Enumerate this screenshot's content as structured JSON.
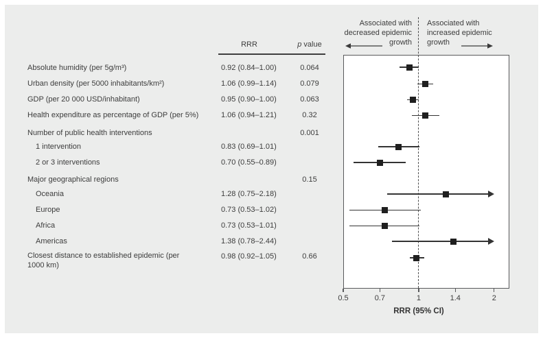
{
  "colors": {
    "panel_bg": "#ecedec",
    "text": "#3c3c3c",
    "marker": "#1f1f1f",
    "line": "#333333",
    "box_border": "#58595b",
    "reference_line": "#4e4e4e"
  },
  "table": {
    "header": {
      "rrr": "RRR",
      "p_italic": "p",
      "p_rest": " value"
    },
    "rows": [
      {
        "label": "Absolute humidity (per 5g/m³)",
        "rrr": "0.92 (0.84–1.00)",
        "p": "0.064"
      },
      {
        "label": "Urban density (per 5000 inhabitants/km²)",
        "rrr": "1.06 (0.99–1.14)",
        "p": "0.079"
      },
      {
        "label": "GDP (per 20 000 USD/inhabitant)",
        "rrr": "0.95 (0.90–1.00)",
        "p": "0.063"
      },
      {
        "label": "Health expenditure as percentage of GDP (per 5%)",
        "rrr": "1.06 (0.94–1.21)",
        "p": "0.32"
      },
      {
        "label": "Number of public health interventions",
        "rrr": "",
        "p": "0.001"
      },
      {
        "label": "1 intervention",
        "rrr": "0.83 (0.69–1.01)",
        "p": ""
      },
      {
        "label": "2 or 3 interventions",
        "rrr": "0.70 (0.55–0.89)",
        "p": ""
      },
      {
        "label": "Major geographical regions",
        "rrr": "",
        "p": "0.15"
      },
      {
        "label": "Oceania",
        "rrr": "1.28 (0.75–2.18)",
        "p": ""
      },
      {
        "label": "Europe",
        "rrr": "0.73 (0.53–1.02)",
        "p": ""
      },
      {
        "label": "Africa",
        "rrr": "0.73 (0.53–1.01)",
        "p": ""
      },
      {
        "label": "Americas",
        "rrr": "1.38 (0.78–2.44)",
        "p": ""
      },
      {
        "label": "Closest distance to established epidemic (per 1000 km)",
        "rrr": "0.98 (0.92–1.05)",
        "p": "0.66"
      }
    ]
  },
  "plot": {
    "left_annotation": {
      "line1": "Associated with",
      "line2": "decreased epidemic",
      "line3": "growth"
    },
    "right_annotation": {
      "line1": "Associated with",
      "line2": "increased epidemic",
      "line3": "growth"
    },
    "xlabel": "RRR (95% CI)"
  },
  "chart_data": {
    "type": "scatter",
    "subtype": "forest-plot",
    "xlabel": "RRR (95% CI)",
    "xscale": "log",
    "xlim": [
      0.5,
      2.3
    ],
    "xticks": [
      0.5,
      0.7,
      1,
      1.4,
      2
    ],
    "reference_line": 1,
    "clip_value": 2.0,
    "points": [
      {
        "label": "Absolute humidity (per 5g/m³)",
        "estimate": 0.92,
        "ci_low": 0.84,
        "ci_high": 1.0,
        "p": "0.064",
        "clipped": false
      },
      {
        "label": "Urban density (per 5000 inhabitants/km²)",
        "estimate": 1.06,
        "ci_low": 0.99,
        "ci_high": 1.14,
        "p": "0.079",
        "clipped": false
      },
      {
        "label": "GDP (per 20 000 USD/inhabitant)",
        "estimate": 0.95,
        "ci_low": 0.9,
        "ci_high": 1.0,
        "p": "0.063",
        "clipped": false
      },
      {
        "label": "Health expenditure as percentage of GDP (per 5%)",
        "estimate": 1.06,
        "ci_low": 0.94,
        "ci_high": 1.21,
        "p": "0.32",
        "clipped": false
      },
      {
        "label": "1 intervention",
        "group": "Number of public health interventions",
        "group_p": "0.001",
        "estimate": 0.83,
        "ci_low": 0.69,
        "ci_high": 1.01,
        "clipped": false
      },
      {
        "label": "2 or 3 interventions",
        "group": "Number of public health interventions",
        "estimate": 0.7,
        "ci_low": 0.55,
        "ci_high": 0.89,
        "clipped": false
      },
      {
        "label": "Oceania",
        "group": "Major geographical regions",
        "group_p": "0.15",
        "estimate": 1.28,
        "ci_low": 0.75,
        "ci_high": 2.18,
        "clipped": true
      },
      {
        "label": "Europe",
        "group": "Major geographical regions",
        "estimate": 0.73,
        "ci_low": 0.53,
        "ci_high": 1.02,
        "clipped": false
      },
      {
        "label": "Africa",
        "group": "Major geographical regions",
        "estimate": 0.73,
        "ci_low": 0.53,
        "ci_high": 1.01,
        "clipped": false
      },
      {
        "label": "Americas",
        "group": "Major geographical regions",
        "estimate": 1.38,
        "ci_low": 0.78,
        "ci_high": 2.44,
        "clipped": true
      },
      {
        "label": "Closest distance to established epidemic (per 1000 km)",
        "estimate": 0.98,
        "ci_low": 0.92,
        "ci_high": 1.05,
        "p": "0.66",
        "clipped": false
      }
    ]
  }
}
